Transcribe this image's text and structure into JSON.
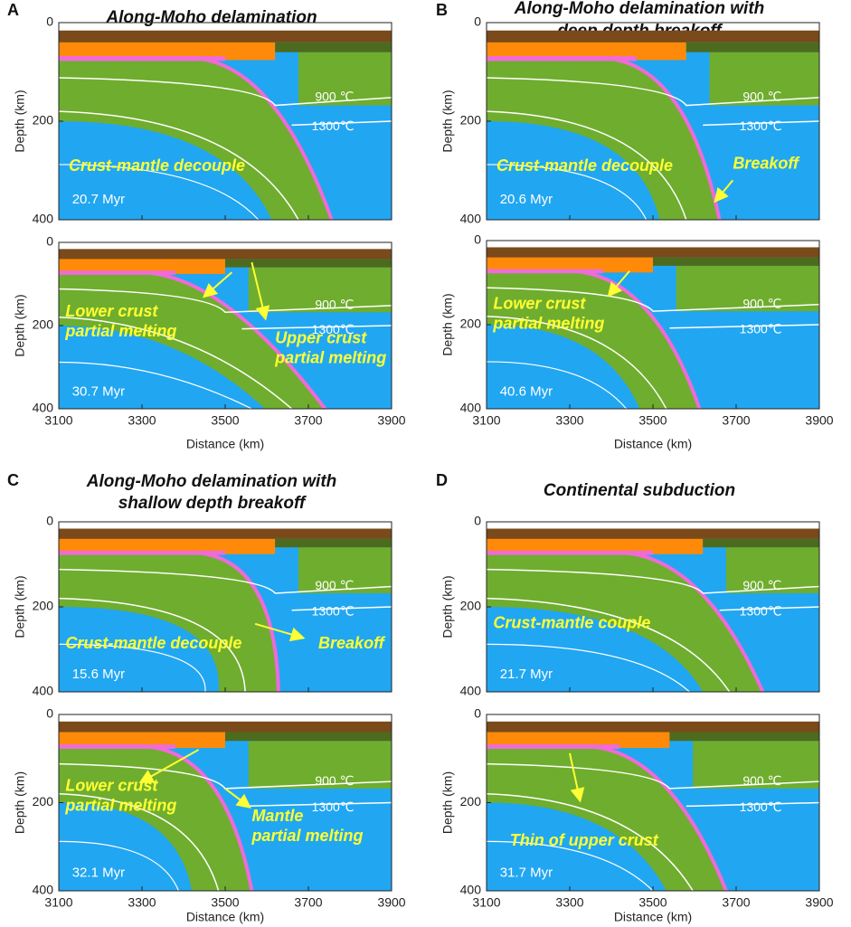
{
  "axes": {
    "xlabel": "Distance (km)",
    "ylabel": "Depth (km)",
    "xlim": [
      3100,
      3900
    ],
    "ylim": [
      0,
      400
    ],
    "xticks": [
      3100,
      3300,
      3500,
      3700,
      3900
    ],
    "yticks": [
      0,
      200,
      400
    ]
  },
  "panels": [
    {
      "label": "A",
      "title": [
        "Along-Moho delamination"
      ],
      "plots": [
        {
          "time": "20.7 Myr",
          "isotherms": [
            "900 ℃",
            "1300℃"
          ],
          "notes": [
            [
              "Crust-mantle decouple"
            ]
          ]
        },
        {
          "time": "30.7 Myr",
          "isotherms": [
            "900 ℃",
            "1300℃"
          ],
          "notes": [
            [
              "Lower crust",
              "partial melting"
            ],
            [
              "Upper crust",
              "partial melting"
            ]
          ]
        }
      ]
    },
    {
      "label": "B",
      "title": [
        "Along-Moho delamination with",
        "deep depth breakoff"
      ],
      "plots": [
        {
          "time": "20.6 Myr",
          "isotherms": [
            "900 ℃",
            "1300℃"
          ],
          "notes": [
            [
              "Crust-mantle decouple"
            ],
            [
              "Breakoff"
            ]
          ]
        },
        {
          "time": "40.6 Myr",
          "isotherms": [
            "900 ℃",
            "1300℃"
          ],
          "notes": [
            [
              "Lower crust",
              "partial melting"
            ]
          ]
        }
      ]
    },
    {
      "label": "C",
      "title": [
        "Along-Moho delamination with",
        "shallow depth breakoff"
      ],
      "plots": [
        {
          "time": "15.6 Myr",
          "isotherms": [
            "900 ℃",
            "1300℃"
          ],
          "notes": [
            [
              "Crust-mantle decouple"
            ],
            [
              "Breakoff"
            ]
          ]
        },
        {
          "time": "32.1 Myr",
          "isotherms": [
            "900 ℃",
            "1300℃"
          ],
          "notes": [
            [
              "Lower crust",
              "partial melting"
            ],
            [
              "Mantle",
              "partial melting"
            ]
          ]
        }
      ]
    },
    {
      "label": "D",
      "title": [
        "Continental subduction"
      ],
      "plots": [
        {
          "time": "21.7 Myr",
          "isotherms": [
            "900 ℃",
            "1300℃"
          ],
          "notes": [
            [
              "Crust-mantle couple"
            ]
          ]
        },
        {
          "time": "31.7 Myr",
          "isotherms": [
            "900 ℃",
            "1300℃"
          ],
          "notes": [
            [
              "Thin of upper crust"
            ]
          ]
        }
      ]
    }
  ]
}
